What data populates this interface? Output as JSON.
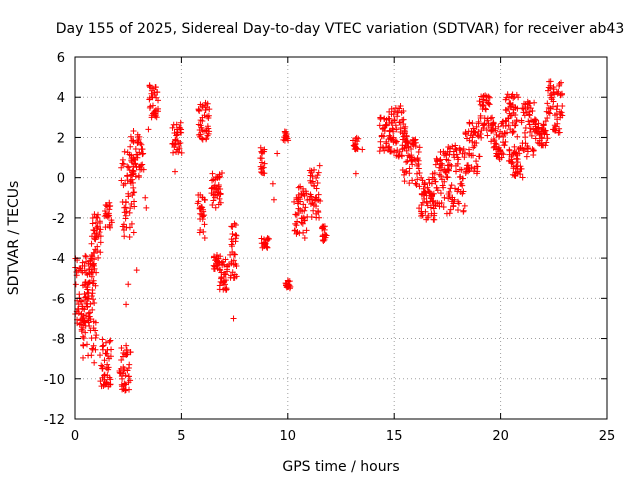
{
  "chart_data": {
    "type": "scatter",
    "title": "Day 155 of 2025, Sidereal Day-to-day VTEC variation (SDTVAR) for receiver ab43",
    "xlabel": "GPS time / hours",
    "ylabel": "SDTVAR / TECUs",
    "xlim": [
      0,
      25
    ],
    "ylim": [
      -12,
      6
    ],
    "x_ticks": [
      0,
      5,
      10,
      15,
      20,
      25
    ],
    "y_ticks": [
      -12,
      -10,
      -8,
      -6,
      -4,
      -2,
      0,
      2,
      4,
      6
    ],
    "grid": true,
    "marker": "+",
    "series": [
      {
        "color": "#ff0000",
        "clusters": [
          {
            "x": [
              0.0,
              0.9
            ],
            "y": [
              -8.0,
              -4.0
            ]
          },
          {
            "x": [
              0.3,
              1.0
            ],
            "y": [
              -9.0,
              -3.8
            ]
          },
          {
            "x": [
              0.8,
              1.2
            ],
            "y": [
              -4.0,
              -1.8
            ]
          },
          {
            "x": [
              1.2,
              1.7
            ],
            "y": [
              -10.5,
              -8.0
            ]
          },
          {
            "x": [
              1.4,
              1.7
            ],
            "y": [
              -2.5,
              -1.2
            ]
          },
          {
            "x": [
              2.1,
              2.6
            ],
            "y": [
              -10.6,
              -8.3
            ]
          },
          {
            "x": [
              2.2,
              2.8
            ],
            "y": [
              -3.0,
              1.3
            ]
          },
          {
            "x": [
              2.6,
              3.2
            ],
            "y": [
              0.0,
              2.4
            ]
          },
          {
            "x": [
              3.5,
              3.9
            ],
            "y": [
              3.0,
              4.7
            ]
          },
          {
            "x": [
              4.6,
              5.0
            ],
            "y": [
              1.2,
              2.8
            ]
          },
          {
            "x": [
              5.8,
              6.3
            ],
            "y": [
              1.8,
              3.8
            ]
          },
          {
            "x": [
              5.8,
              6.1
            ],
            "y": [
              -2.8,
              -0.8
            ]
          },
          {
            "x": [
              6.4,
              6.9
            ],
            "y": [
              -1.5,
              0.3
            ]
          },
          {
            "x": [
              6.5,
              6.8
            ],
            "y": [
              -4.6,
              -3.8
            ]
          },
          {
            "x": [
              6.8,
              7.2
            ],
            "y": [
              -5.7,
              -4.0
            ]
          },
          {
            "x": [
              7.3,
              7.6
            ],
            "y": [
              -5.0,
              -2.2
            ]
          },
          {
            "x": [
              8.7,
              8.9
            ],
            "y": [
              0.2,
              1.6
            ]
          },
          {
            "x": [
              8.8,
              9.1
            ],
            "y": [
              -3.5,
              -3.0
            ]
          },
          {
            "x": [
              9.8,
              10.0
            ],
            "y": [
              1.8,
              2.3
            ]
          },
          {
            "x": [
              9.9,
              10.1
            ],
            "y": [
              -5.5,
              -5.1
            ]
          },
          {
            "x": [
              10.3,
              10.9
            ],
            "y": [
              -2.8,
              -0.2
            ]
          },
          {
            "x": [
              11.0,
              11.5
            ],
            "y": [
              -2.0,
              0.6
            ]
          },
          {
            "x": [
              11.6,
              11.8
            ],
            "y": [
              -3.2,
              -2.3
            ]
          },
          {
            "x": [
              13.1,
              13.3
            ],
            "y": [
              1.4,
              2.0
            ]
          },
          {
            "x": [
              14.3,
              14.9
            ],
            "y": [
              1.3,
              3.0
            ]
          },
          {
            "x": [
              14.8,
              15.6
            ],
            "y": [
              1.0,
              3.6
            ]
          },
          {
            "x": [
              15.4,
              16.2
            ],
            "y": [
              -0.4,
              2.2
            ]
          },
          {
            "x": [
              16.2,
              16.9
            ],
            "y": [
              -2.3,
              0.0
            ]
          },
          {
            "x": [
              16.8,
              17.6
            ],
            "y": [
              -1.5,
              1.3
            ]
          },
          {
            "x": [
              17.5,
              18.3
            ],
            "y": [
              -1.8,
              1.6
            ]
          },
          {
            "x": [
              18.3,
              19.0
            ],
            "y": [
              0.2,
              2.8
            ]
          },
          {
            "x": [
              19.0,
              19.6
            ],
            "y": [
              1.8,
              4.1
            ]
          },
          {
            "x": [
              19.6,
              20.2
            ],
            "y": [
              0.8,
              3.0
            ]
          },
          {
            "x": [
              20.2,
              20.8
            ],
            "y": [
              2.0,
              4.2
            ]
          },
          {
            "x": [
              20.4,
              21.0
            ],
            "y": [
              0.0,
              1.6
            ]
          },
          {
            "x": [
              21.0,
              21.6
            ],
            "y": [
              1.0,
              3.8
            ]
          },
          {
            "x": [
              21.6,
              22.2
            ],
            "y": [
              1.6,
              3.0
            ]
          },
          {
            "x": [
              22.2,
              22.9
            ],
            "y": [
              2.2,
              4.8
            ]
          }
        ],
        "points": [
          [
            0.1,
            -4.1
          ],
          [
            0.2,
            -5.8
          ],
          [
            0.3,
            -6.8
          ],
          [
            0.45,
            -7.2
          ],
          [
            0.6,
            -6.0
          ],
          [
            0.7,
            -5.2
          ],
          [
            0.8,
            -8.5
          ],
          [
            0.9,
            -9.2
          ],
          [
            1.0,
            -2.8
          ],
          [
            1.05,
            -2.0
          ],
          [
            1.3,
            -9.5
          ],
          [
            1.5,
            -10.2
          ],
          [
            1.6,
            -9.0
          ],
          [
            1.65,
            -1.4
          ],
          [
            2.2,
            -10.3
          ],
          [
            2.3,
            -9.6
          ],
          [
            2.4,
            -8.8
          ],
          [
            2.4,
            -6.3
          ],
          [
            2.5,
            -5.3
          ],
          [
            2.3,
            -2.6
          ],
          [
            2.5,
            -0.8
          ],
          [
            2.9,
            -4.6
          ],
          [
            3.2,
            1.2
          ],
          [
            3.3,
            -1.0
          ],
          [
            3.35,
            -1.5
          ],
          [
            3.45,
            2.4
          ],
          [
            3.6,
            3.0
          ],
          [
            3.8,
            4.5
          ],
          [
            3.9,
            3.3
          ],
          [
            4.6,
            1.7
          ],
          [
            4.8,
            1.4
          ],
          [
            4.9,
            2.5
          ],
          [
            4.7,
            0.3
          ],
          [
            6.0,
            -1.0
          ],
          [
            6.1,
            -3.0
          ],
          [
            6.2,
            3.5
          ],
          [
            6.3,
            2.3
          ],
          [
            6.6,
            -4.1
          ],
          [
            6.9,
            -5.2
          ],
          [
            7.05,
            -5.5
          ],
          [
            7.4,
            -2.8
          ],
          [
            7.45,
            -7.0
          ],
          [
            8.9,
            1.4
          ],
          [
            8.95,
            -3.3
          ],
          [
            9.3,
            -0.3
          ],
          [
            9.35,
            -1.1
          ],
          [
            9.5,
            1.2
          ],
          [
            9.9,
            2.1
          ],
          [
            10.1,
            -5.5
          ],
          [
            10.5,
            -1.2
          ],
          [
            10.8,
            -3.0
          ],
          [
            11.5,
            0.6
          ],
          [
            13.1,
            1.6
          ],
          [
            13.2,
            0.2
          ],
          [
            13.5,
            1.4
          ],
          [
            14.6,
            2.6
          ],
          [
            15.0,
            3.3
          ],
          [
            15.4,
            2.2
          ],
          [
            15.8,
            1.0
          ],
          [
            16.0,
            1.9
          ],
          [
            16.3,
            -0.8
          ],
          [
            16.6,
            -1.9
          ],
          [
            17.0,
            -0.5
          ],
          [
            17.4,
            1.2
          ],
          [
            18.0,
            -1.2
          ],
          [
            18.5,
            2.3
          ],
          [
            19.2,
            3.6
          ],
          [
            19.8,
            1.2
          ],
          [
            20.5,
            3.5
          ],
          [
            20.8,
            0.2
          ],
          [
            21.3,
            2.8
          ],
          [
            21.9,
            2.3
          ],
          [
            22.5,
            4.4
          ],
          [
            22.8,
            3.0
          ]
        ]
      }
    ]
  }
}
